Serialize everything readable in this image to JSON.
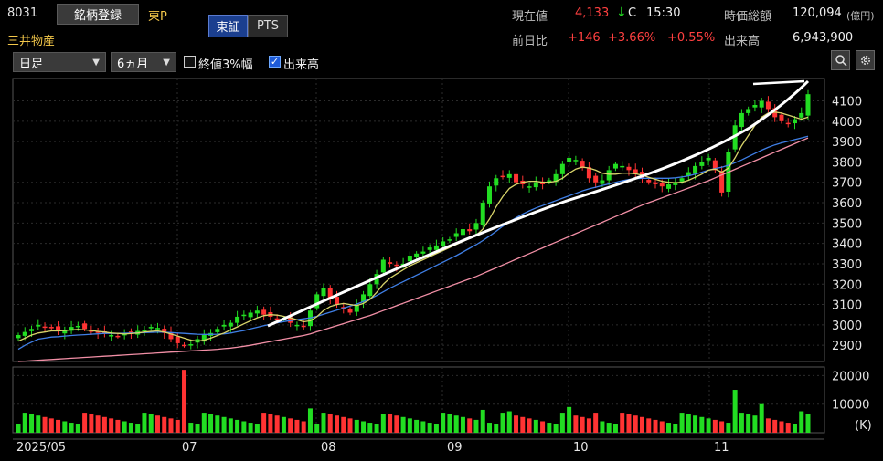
{
  "header": {
    "code": "8031",
    "register_label": "銘柄登録",
    "market": "東P",
    "name": "三井物産",
    "venue_tabs": [
      "東証",
      "PTS"
    ],
    "quote": {
      "current_label": "現在値",
      "current_value": "4,133",
      "arrow": "↓",
      "flag": "C",
      "time": "15:30",
      "prev_label": "前日比",
      "change": "+146",
      "change_pct": "+3.66%",
      "change_pct2": "+0.55%",
      "mcap_label": "時価総額",
      "mcap_value": "120,094",
      "mcap_unit": "(億円)",
      "volume_label": "出来高",
      "volume_value": "6,943,900"
    }
  },
  "toolbar": {
    "period_select": "日足",
    "range_select": "6ヵ月",
    "close3_label": "終値3%幅",
    "close3_checked": false,
    "volume_label": "出来高",
    "volume_checked": true,
    "zoom_icon": "magnifier-icon",
    "settings_icon": "gear-icon"
  },
  "colors": {
    "up": "#22dd22",
    "down": "#ff3333",
    "ma_short": "#d8d46a",
    "ma_mid": "#3f7fe6",
    "ma_long": "#f28fa6",
    "trendline": "#ffffff"
  },
  "chart_data": [
    {
      "type": "candlestick",
      "x_labels": [
        "2025/05",
        "07",
        "08",
        "09",
        "10",
        "11"
      ],
      "y_ticks": [
        2900,
        3000,
        3100,
        3200,
        3300,
        3400,
        3500,
        3600,
        3700,
        3800,
        3900,
        4000,
        4100
      ],
      "ylim": [
        2820,
        4210
      ],
      "grid": true,
      "close_approx": [
        2950,
        2965,
        2980,
        3000,
        2990,
        2985,
        2970,
        2975,
        2990,
        2995,
        2980,
        2970,
        2960,
        2955,
        2950,
        2945,
        2955,
        2960,
        2970,
        2975,
        2990,
        2985,
        2960,
        2930,
        2910,
        2900,
        2905,
        2930,
        2950,
        2960,
        2980,
        3000,
        3010,
        3040,
        3050,
        3060,
        3070,
        3050,
        3040,
        3030,
        3030,
        3010,
        3000,
        2990,
        3070,
        3150,
        3180,
        3130,
        3100,
        3080,
        3060,
        3100,
        3150,
        3200,
        3250,
        3320,
        3300,
        3290,
        3300,
        3340,
        3350,
        3360,
        3380,
        3390,
        3410,
        3420,
        3450,
        3470,
        3460,
        3500,
        3600,
        3680,
        3720,
        3730,
        3740,
        3700,
        3690,
        3680,
        3700,
        3690,
        3710,
        3740,
        3790,
        3820,
        3810,
        3770,
        3720,
        3700,
        3710,
        3760,
        3790,
        3780,
        3760,
        3740,
        3720,
        3700,
        3690,
        3680,
        3690,
        3700,
        3720,
        3750,
        3780,
        3800,
        3820,
        3760,
        3650,
        3850,
        3980,
        4040,
        4060,
        4080,
        4100,
        4060,
        4020,
        4000,
        3990,
        4010,
        4040,
        4133
      ],
      "ma_short_approx": [
        2920,
        2935,
        2950,
        2960,
        2965,
        2970,
        2970,
        2972,
        2975,
        2978,
        2975,
        2972,
        2968,
        2965,
        2960,
        2958,
        2955,
        2957,
        2960,
        2965,
        2968,
        2970,
        2965,
        2955,
        2945,
        2935,
        2925,
        2920,
        2925,
        2935,
        2948,
        2960,
        2975,
        2990,
        3005,
        3020,
        3035,
        3045,
        3050,
        3048,
        3042,
        3035,
        3025,
        3015,
        3020,
        3040,
        3070,
        3090,
        3100,
        3105,
        3100,
        3095,
        3105,
        3125,
        3160,
        3200,
        3230,
        3250,
        3270,
        3290,
        3305,
        3320,
        3335,
        3350,
        3365,
        3380,
        3395,
        3410,
        3425,
        3440,
        3470,
        3520,
        3580,
        3630,
        3670,
        3690,
        3700,
        3705,
        3705,
        3700,
        3700,
        3705,
        3720,
        3745,
        3765,
        3775,
        3770,
        3760,
        3745,
        3740,
        3740,
        3745,
        3745,
        3742,
        3735,
        3725,
        3715,
        3705,
        3700,
        3698,
        3700,
        3710,
        3725,
        3740,
        3760,
        3765,
        3750,
        3770,
        3820,
        3880,
        3930,
        3980,
        4020,
        4040,
        4045,
        4040,
        4030,
        4020,
        4010,
        4020
      ],
      "ma_mid_approx": [
        2880,
        2900,
        2915,
        2930,
        2935,
        2940,
        2942,
        2945,
        2948,
        2950,
        2952,
        2954,
        2956,
        2958,
        2958,
        2958,
        2959,
        2960,
        2961,
        2962,
        2963,
        2964,
        2964,
        2962,
        2960,
        2958,
        2956,
        2954,
        2953,
        2953,
        2954,
        2956,
        2960,
        2966,
        2972,
        2980,
        2988,
        2996,
        3003,
        3010,
        3016,
        3021,
        3026,
        3030,
        3035,
        3042,
        3052,
        3062,
        3072,
        3082,
        3092,
        3102,
        3114,
        3128,
        3144,
        3162,
        3180,
        3196,
        3212,
        3228,
        3244,
        3260,
        3276,
        3292,
        3308,
        3324,
        3340,
        3358,
        3376,
        3394,
        3414,
        3436,
        3460,
        3484,
        3506,
        3526,
        3544,
        3560,
        3574,
        3586,
        3598,
        3610,
        3622,
        3634,
        3646,
        3658,
        3668,
        3676,
        3684,
        3692,
        3700,
        3708,
        3714,
        3718,
        3720,
        3720,
        3720,
        3720,
        3720,
        3722,
        3726,
        3732,
        3740,
        3750,
        3760,
        3768,
        3774,
        3784,
        3796,
        3810,
        3826,
        3842,
        3858,
        3872,
        3884,
        3894,
        3902,
        3910,
        3918,
        3926
      ],
      "ma_long_approx": [
        2820,
        2822,
        2824,
        2826,
        2828,
        2830,
        2832,
        2834,
        2836,
        2838,
        2840,
        2842,
        2844,
        2846,
        2848,
        2850,
        2852,
        2854,
        2856,
        2858,
        2860,
        2862,
        2864,
        2866,
        2868,
        2870,
        2872,
        2874,
        2876,
        2878,
        2880,
        2883,
        2886,
        2890,
        2895,
        2900,
        2906,
        2912,
        2918,
        2924,
        2930,
        2936,
        2942,
        2948,
        2956,
        2966,
        2976,
        2986,
        2996,
        3006,
        3016,
        3026,
        3036,
        3046,
        3058,
        3070,
        3082,
        3094,
        3106,
        3118,
        3130,
        3142,
        3154,
        3166,
        3178,
        3190,
        3202,
        3214,
        3226,
        3238,
        3252,
        3266,
        3280,
        3294,
        3308,
        3322,
        3336,
        3350,
        3364,
        3378,
        3392,
        3406,
        3420,
        3434,
        3448,
        3462,
        3476,
        3490,
        3504,
        3518,
        3532,
        3546,
        3560,
        3574,
        3588,
        3600,
        3612,
        3624,
        3636,
        3648,
        3660,
        3672,
        3684,
        3696,
        3708,
        3722,
        3736,
        3750,
        3764,
        3778,
        3792,
        3806,
        3820,
        3834,
        3848,
        3862,
        3876,
        3890,
        3904,
        3918
      ]
    },
    {
      "type": "bar",
      "title": "出来高",
      "y_ticks": [
        10000,
        20000
      ],
      "unit": "(K)",
      "ylim": [
        0,
        23000
      ],
      "grid": true
    }
  ]
}
